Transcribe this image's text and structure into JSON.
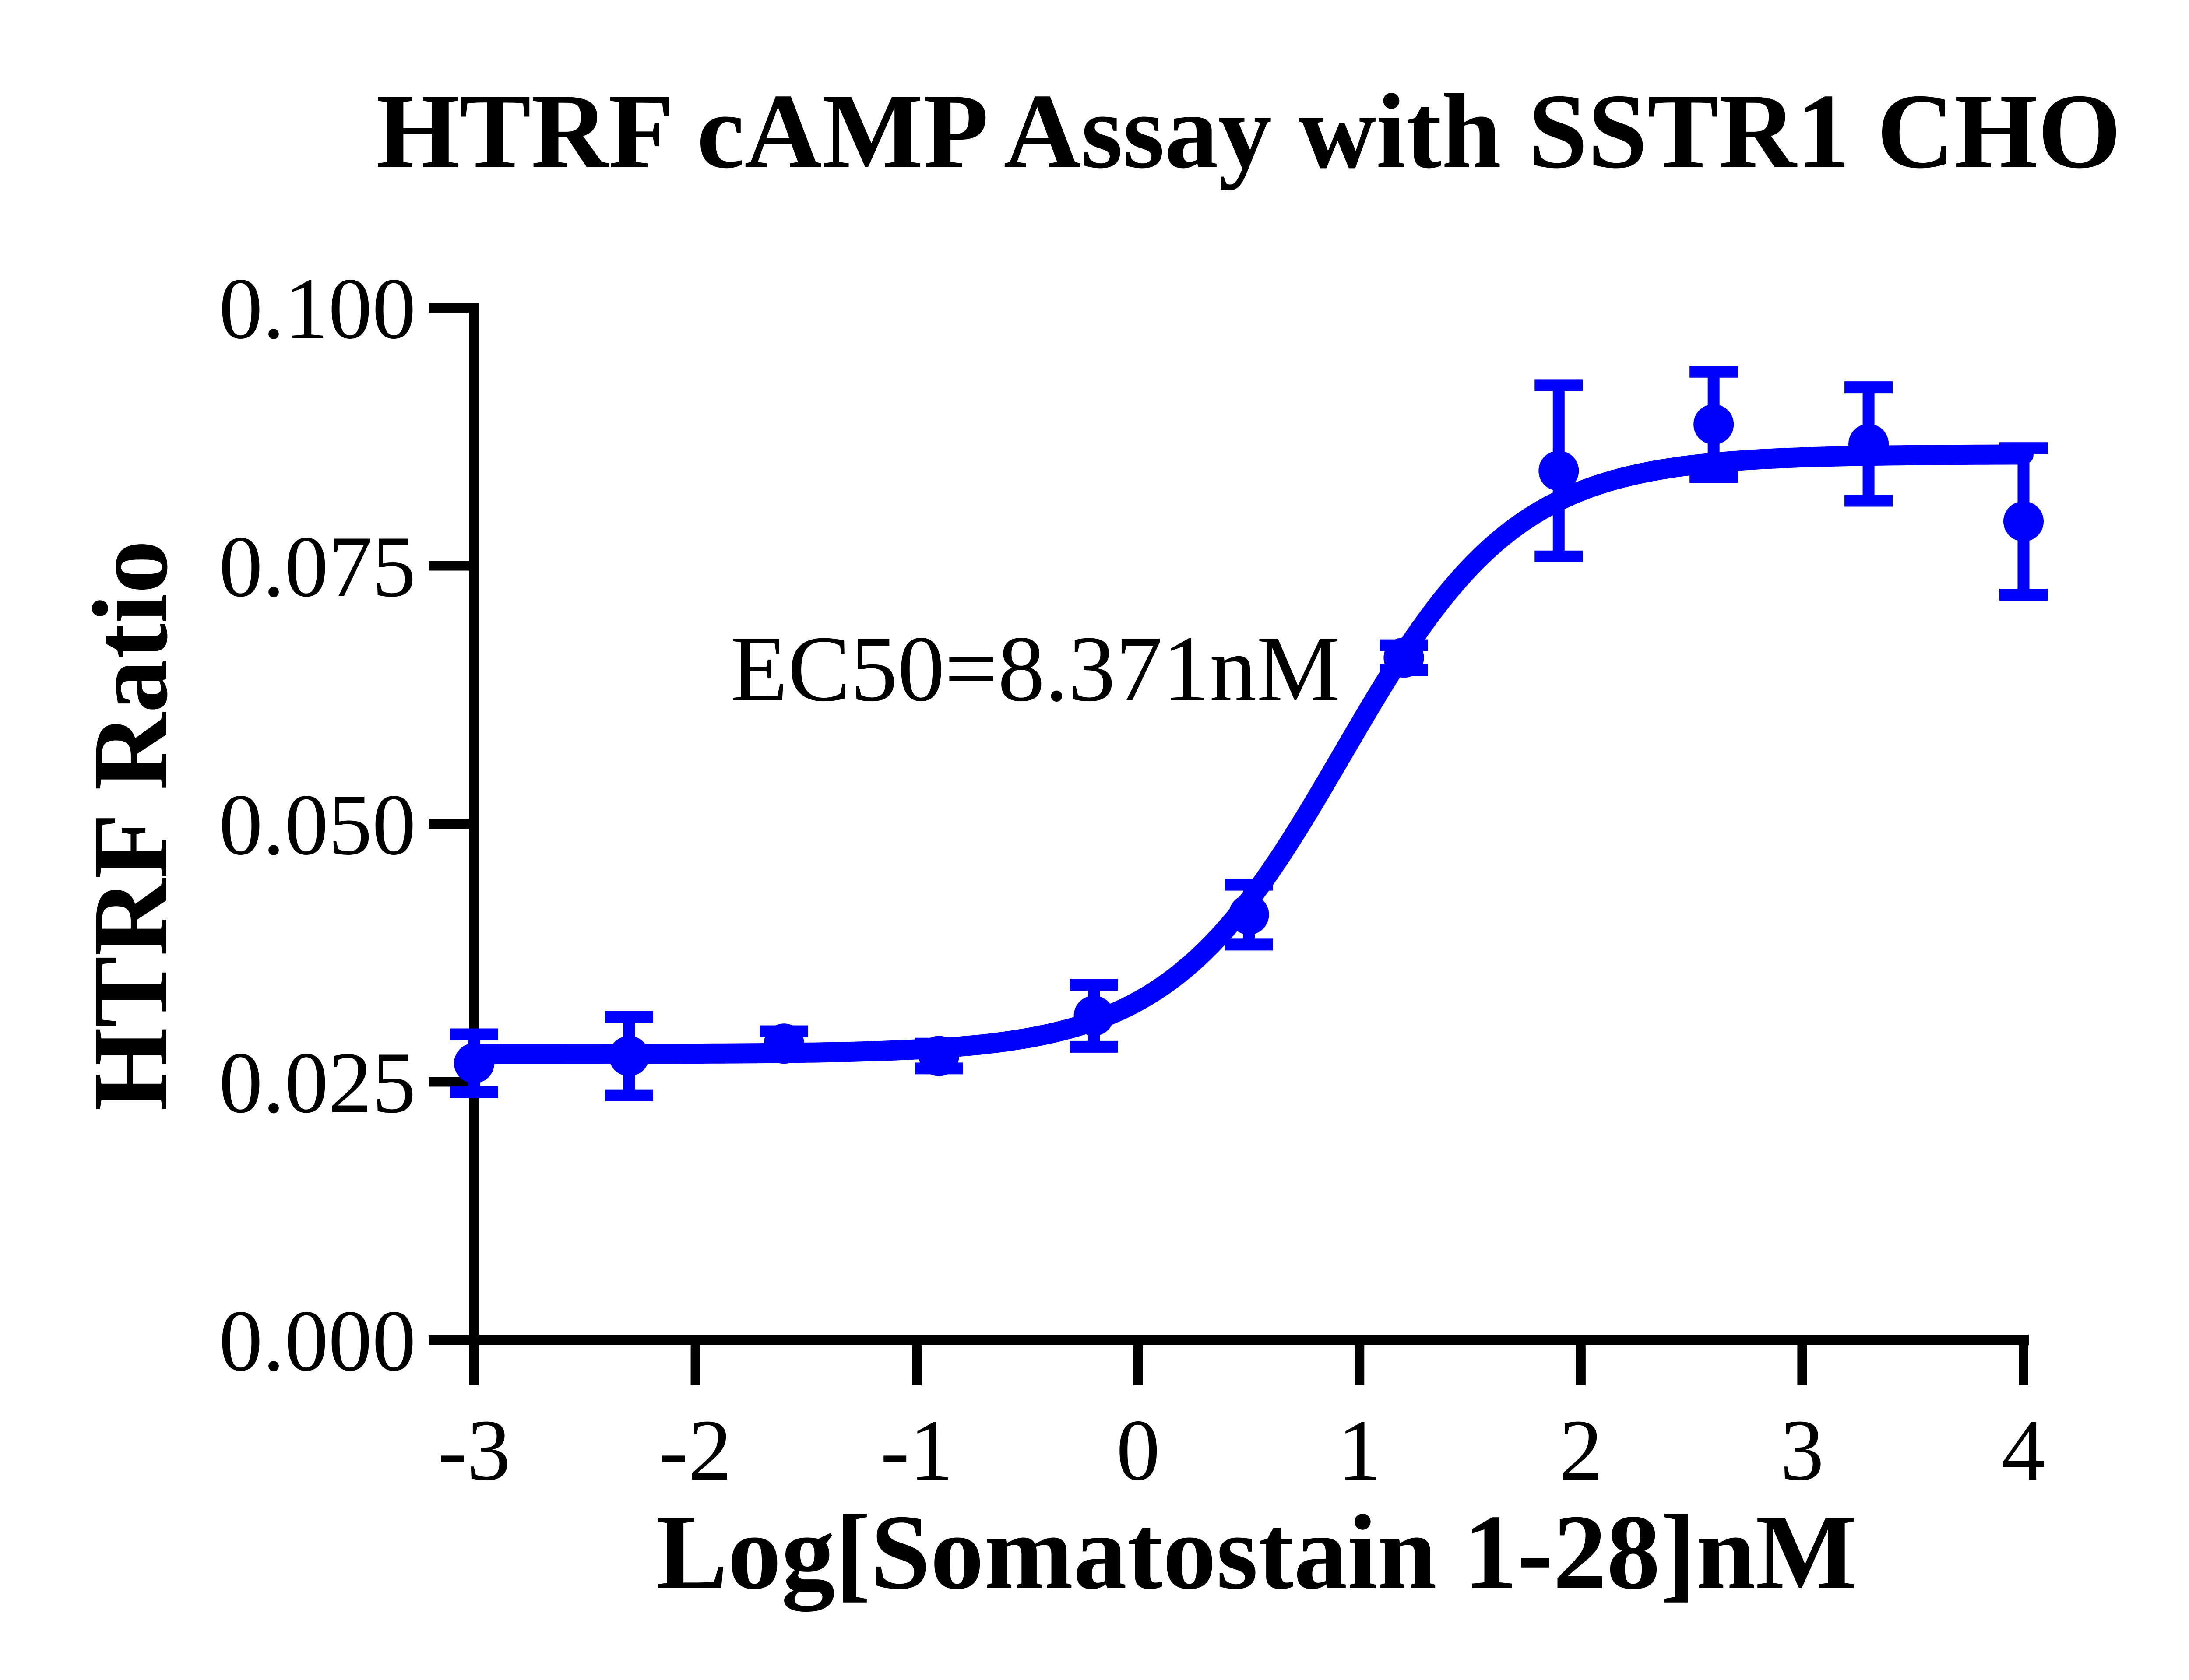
{
  "chart_data": {
    "type": "scatter",
    "title": "HTRF cAMP Assay with SSTR1 CHO",
    "xlabel": "Log[Somatostain 1-28]nM",
    "ylabel": "HTRF Ratio",
    "annotation": "EC50=8.371nM",
    "ec50_nM": 8.371,
    "xlim": [
      -3,
      4
    ],
    "ylim": [
      0.0,
      0.1
    ],
    "x_tick_values": [
      -3,
      -2,
      -1,
      0,
      1,
      2,
      3,
      4
    ],
    "x_tick_labels": [
      "-3",
      "-2",
      "-1",
      "0",
      "1",
      "2",
      "3",
      "4"
    ],
    "y_tick_values": [
      0.0,
      0.025,
      0.05,
      0.075,
      0.1
    ],
    "y_tick_labels": [
      "0.000",
      "0.025",
      "0.050",
      "0.075",
      "0.100"
    ],
    "grid": false,
    "legend_position": "none",
    "background_color": "#FFFFFF",
    "axis_color": "#000000",
    "series": [
      {
        "name": "Somatostatin 1-28",
        "color": "#0000FF",
        "marker": "circle",
        "points": [
          {
            "x": -3.0,
            "y": 0.0268,
            "err": 0.0028
          },
          {
            "x": -2.3,
            "y": 0.0275,
            "err": 0.0038
          },
          {
            "x": -1.6,
            "y": 0.0287,
            "err": 0.0012
          },
          {
            "x": -0.9,
            "y": 0.0275,
            "err": 0.0012
          },
          {
            "x": -0.2,
            "y": 0.0314,
            "err": 0.003
          },
          {
            "x": 0.5,
            "y": 0.0412,
            "err": 0.0029
          },
          {
            "x": 1.2,
            "y": 0.0661,
            "err": 0.0012
          },
          {
            "x": 1.9,
            "y": 0.0842,
            "err": 0.0083
          },
          {
            "x": 2.6,
            "y": 0.0887,
            "err": 0.0051
          },
          {
            "x": 3.3,
            "y": 0.0868,
            "err": 0.0055
          },
          {
            "x": 4.0,
            "y": 0.0793,
            "err": 0.0071
          }
        ]
      }
    ],
    "fit_curve": {
      "model": "4PL-sigmoid",
      "bottom": 0.0277,
      "top": 0.0858,
      "log_ec50": 0.9228,
      "hill_slope": 1.1
    }
  }
}
